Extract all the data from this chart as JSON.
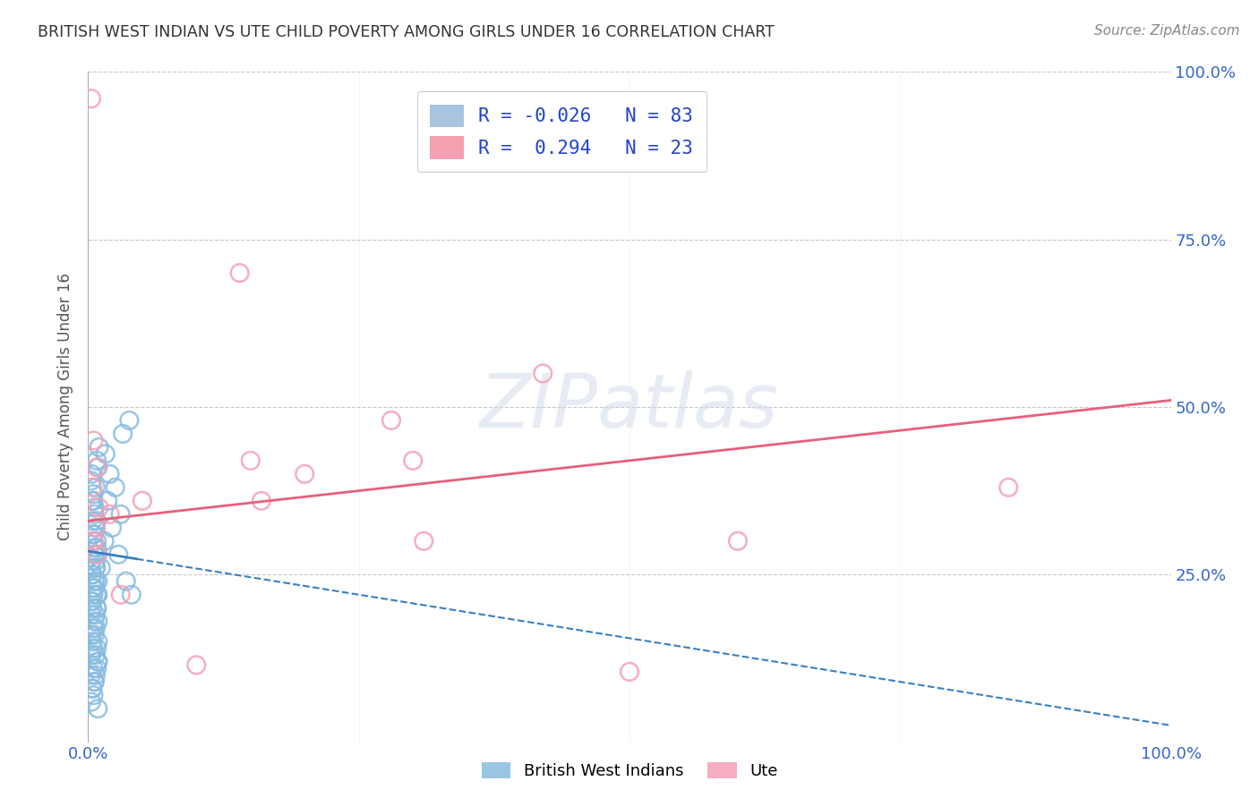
{
  "title": "BRITISH WEST INDIAN VS UTE CHILD POVERTY AMONG GIRLS UNDER 16 CORRELATION CHART",
  "source": "Source: ZipAtlas.com",
  "ylabel": "Child Poverty Among Girls Under 16",
  "legend_entries": [
    {
      "label": "R = -0.026   N = 83",
      "color": "#a8c4e0"
    },
    {
      "label": "R =  0.294   N = 23",
      "color": "#f4a0b0"
    }
  ],
  "blue_scatter_x": [
    0.005,
    0.008,
    0.003,
    0.007,
    0.01,
    0.006,
    0.004,
    0.009,
    0.005,
    0.003,
    0.007,
    0.008,
    0.006,
    0.004,
    0.009,
    0.005,
    0.007,
    0.006,
    0.003,
    0.008,
    0.004,
    0.006,
    0.005,
    0.007,
    0.009,
    0.003,
    0.008,
    0.006,
    0.004,
    0.007,
    0.005,
    0.003,
    0.009,
    0.006,
    0.008,
    0.004,
    0.007,
    0.005,
    0.003,
    0.006,
    0.009,
    0.004,
    0.008,
    0.005,
    0.007,
    0.003,
    0.006,
    0.009,
    0.004,
    0.008,
    0.005,
    0.007,
    0.003,
    0.006,
    0.009,
    0.004,
    0.008,
    0.005,
    0.007,
    0.003,
    0.006,
    0.009,
    0.004,
    0.008,
    0.005,
    0.007,
    0.003,
    0.006,
    0.009,
    0.004,
    0.02,
    0.025,
    0.018,
    0.03,
    0.022,
    0.015,
    0.028,
    0.012,
    0.035,
    0.04,
    0.032,
    0.038,
    0.016
  ],
  "blue_scatter_y": [
    0.36,
    0.42,
    0.4,
    0.38,
    0.44,
    0.35,
    0.33,
    0.41,
    0.37,
    0.39,
    0.32,
    0.3,
    0.34,
    0.36,
    0.28,
    0.31,
    0.26,
    0.29,
    0.27,
    0.33,
    0.25,
    0.28,
    0.3,
    0.24,
    0.22,
    0.26,
    0.29,
    0.23,
    0.25,
    0.27,
    0.31,
    0.21,
    0.24,
    0.28,
    0.2,
    0.23,
    0.26,
    0.22,
    0.19,
    0.24,
    0.18,
    0.21,
    0.2,
    0.17,
    0.19,
    0.16,
    0.18,
    0.15,
    0.2,
    0.22,
    0.14,
    0.17,
    0.13,
    0.16,
    0.12,
    0.15,
    0.14,
    0.11,
    0.13,
    0.1,
    0.09,
    0.12,
    0.08,
    0.11,
    0.07,
    0.1,
    0.06,
    0.09,
    0.05,
    0.08,
    0.4,
    0.38,
    0.36,
    0.34,
    0.32,
    0.3,
    0.28,
    0.26,
    0.24,
    0.22,
    0.46,
    0.48,
    0.43
  ],
  "pink_scatter_x": [
    0.003,
    0.005,
    0.008,
    0.01,
    0.004,
    0.007,
    0.15,
    0.14,
    0.16,
    0.005,
    0.008,
    0.3,
    0.31,
    0.5,
    0.42,
    0.85,
    0.6,
    0.1,
    0.2,
    0.02,
    0.03,
    0.05,
    0.28
  ],
  "pink_scatter_y": [
    0.96,
    0.45,
    0.41,
    0.35,
    0.38,
    0.32,
    0.42,
    0.7,
    0.36,
    0.3,
    0.28,
    0.42,
    0.3,
    0.105,
    0.55,
    0.38,
    0.3,
    0.115,
    0.4,
    0.34,
    0.22,
    0.36,
    0.48
  ],
  "blue_line_x0": 0.0,
  "blue_line_x1": 1.0,
  "blue_line_y0": 0.285,
  "blue_line_y1": 0.025,
  "pink_line_x0": 0.0,
  "pink_line_x1": 1.0,
  "pink_line_y0": 0.33,
  "pink_line_y1": 0.51,
  "scatter_alpha": 0.5,
  "scatter_size": 200,
  "blue_color": "#88bce0",
  "pink_color": "#f5a0b5",
  "blue_line_color": "#3a7fc1",
  "pink_line_color": "#e8607a",
  "grid_color": "#c8c8c8",
  "background_color": "#ffffff",
  "title_color": "#333333",
  "source_color": "#888888",
  "legend_text_color": "#2244cc",
  "watermark_text": "ZIPatlas",
  "xlim": [
    0.0,
    1.0
  ],
  "ylim": [
    0.0,
    1.0
  ],
  "yticks": [
    0.0,
    0.25,
    0.5,
    0.75,
    1.0
  ],
  "ytick_labels_right": [
    "",
    "25.0%",
    "50.0%",
    "75.0%",
    "100.0%"
  ],
  "xticks": [
    0.0,
    0.25,
    0.5,
    0.75,
    1.0
  ],
  "xtick_labels": [
    "0.0%",
    "",
    "",
    "",
    "100.0%"
  ]
}
